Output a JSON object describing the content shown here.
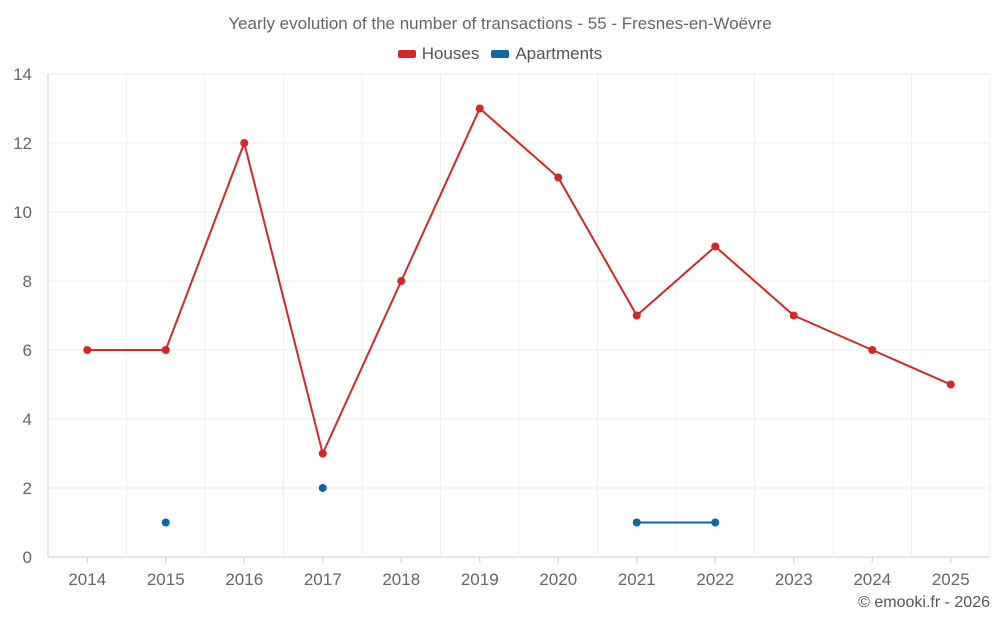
{
  "chart_data": {
    "type": "line",
    "title": "Yearly evolution of the number of transactions - 55 - Fresnes-en-Woëvre",
    "categories": [
      "2014",
      "2015",
      "2016",
      "2017",
      "2018",
      "2019",
      "2020",
      "2021",
      "2022",
      "2023",
      "2024",
      "2025"
    ],
    "ylim": [
      0,
      14
    ],
    "yticks": [
      0,
      2,
      4,
      6,
      8,
      10,
      12,
      14
    ],
    "grid": true,
    "legend_position": "top-center",
    "series": [
      {
        "name": "Houses",
        "color": "#d62728",
        "values": [
          6,
          6,
          12,
          3,
          8,
          13,
          11,
          7,
          9,
          7,
          6,
          5
        ]
      },
      {
        "name": "Apartments",
        "color": "#0b68a1",
        "values": [
          null,
          1,
          null,
          2,
          null,
          null,
          null,
          1,
          1,
          null,
          null,
          null
        ]
      }
    ]
  },
  "credit": "© emooki.fr - 2026"
}
